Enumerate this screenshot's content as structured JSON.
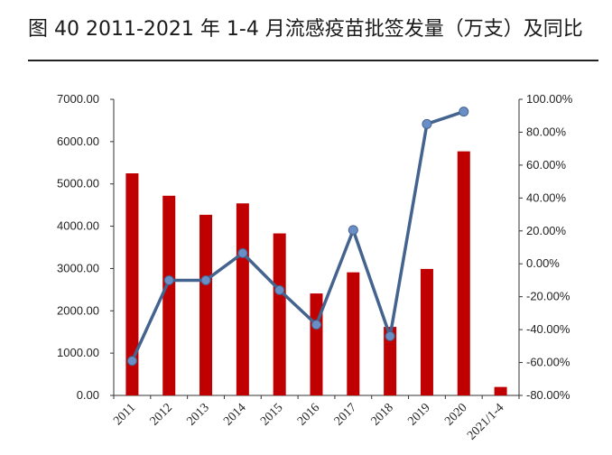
{
  "title": "图 40 2011-2021 年 1-4 月流感疫苗批签发量（万支）及同比",
  "colors": {
    "bar": "#c00000",
    "line": "#44638f",
    "marker": "#6a8fc6",
    "axis": "#333333"
  },
  "chart_data": {
    "type": "bar",
    "categories": [
      "2011",
      "2012",
      "2013",
      "2014",
      "2015",
      "2016",
      "2017",
      "2018",
      "2019",
      "2020",
      "2021/1-4"
    ],
    "series": [
      {
        "type": "bar",
        "axis": "left",
        "values": [
          5250,
          4720,
          4270,
          4540,
          3830,
          2410,
          2910,
          1620,
          2990,
          5770,
          200
        ]
      },
      {
        "type": "line",
        "axis": "right",
        "values": [
          -0.59,
          -0.1,
          -0.1,
          0.065,
          -0.16,
          -0.37,
          0.205,
          -0.44,
          0.85,
          0.925,
          null
        ]
      }
    ],
    "y_left": {
      "min": 0,
      "max": 7000,
      "step": 1000,
      "ticks": [
        "0.00",
        "1000.00",
        "2000.00",
        "3000.00",
        "4000.00",
        "5000.00",
        "6000.00",
        "7000.00"
      ]
    },
    "y_right": {
      "min": -0.8,
      "max": 1.0,
      "step": 0.2,
      "ticks": [
        "-80.00%",
        "-60.00%",
        "-40.00%",
        "-20.00%",
        "0.00%",
        "20.00%",
        "40.00%",
        "60.00%",
        "80.00%",
        "100.00%"
      ]
    },
    "grid": false,
    "legend": "none"
  }
}
